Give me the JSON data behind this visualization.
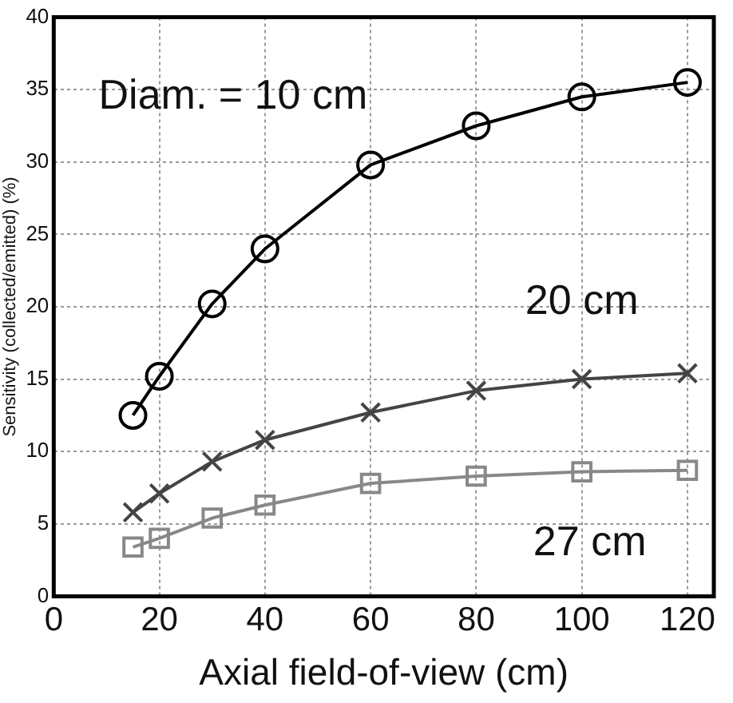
{
  "chart_data": {
    "type": "line",
    "xlabel": "Axial field-of-view (cm)",
    "ylabel": "Sensitivity (collected/emitted) (%)",
    "x": [
      15,
      20,
      30,
      40,
      60,
      80,
      100,
      120
    ],
    "series": [
      {
        "name": "Diam. = 10 cm",
        "color": "#000000",
        "marker": "circle",
        "values": [
          12.5,
          15.2,
          20.2,
          24,
          29.8,
          32.5,
          34.5,
          35.5
        ]
      },
      {
        "name": "20 cm",
        "color": "#444444",
        "marker": "cross",
        "values": [
          5.8,
          7.1,
          9.3,
          10.8,
          12.7,
          14.2,
          15,
          15.4
        ]
      },
      {
        "name": "27 cm",
        "color": "#888888",
        "marker": "square",
        "values": [
          3.4,
          4,
          5.4,
          6.3,
          7.8,
          8.3,
          8.6,
          8.7
        ]
      }
    ],
    "xlim": [
      0,
      125
    ],
    "xticks": [
      0,
      20,
      40,
      60,
      80,
      100,
      120
    ],
    "ylim": [
      0,
      40
    ],
    "yticks": [
      0,
      5,
      10,
      15,
      20,
      25,
      30,
      35,
      40
    ],
    "grid": true,
    "legend": false,
    "line_style": "solid"
  }
}
